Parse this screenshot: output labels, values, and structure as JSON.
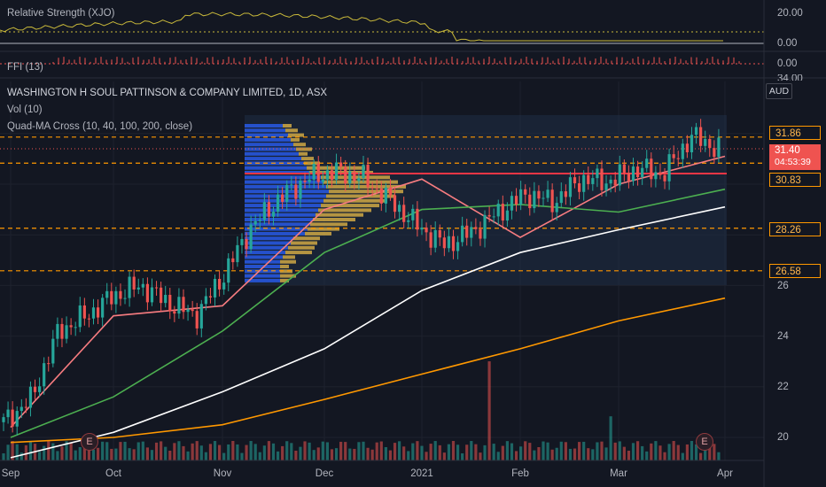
{
  "indicators": {
    "rs_label": "Relative Strength (XJO)",
    "rs_axis": [
      "20.00",
      "0.00"
    ],
    "ffi_label": "FFI (13)",
    "ffi_axis": [
      "0.00"
    ]
  },
  "main": {
    "symbol_title": "WASHINGTON H SOUL PATTINSON & COMPANY LIMITED, 1D, ASX",
    "vol_label": "Vol (10)",
    "ma_label": "Quad-MA Cross (10, 40, 100, 200, close)",
    "currency": "AUD",
    "axis_top_partial": "34.00"
  },
  "colors": {
    "background": "#131722",
    "up": "#26a69a",
    "down": "#ef5350",
    "ma10": "#f77c80",
    "ma40": "#4caf50",
    "ma100": "#ffffff",
    "ma200": "#ff9800",
    "level": "#ff9800",
    "resistance": "#f23645",
    "rs_line": "#c8b83a",
    "profile_blue": "#2962ff",
    "profile_yellow": "#f7c548"
  },
  "chart_data": {
    "type": "candlestick",
    "title": "WASHINGTON H SOUL PATTINSON & COMPANY LIMITED, 1D, ASX",
    "y_axis": {
      "ticks": [
        20.0,
        22.0,
        24.0,
        26.0,
        34.0
      ],
      "ylim": [
        19.2,
        34.0
      ]
    },
    "x_axis": {
      "ticks": [
        "Sep",
        "Oct",
        "Nov",
        "Dec",
        "2021",
        "Feb",
        "Mar",
        "Apr"
      ]
    },
    "horizontal_levels": [
      {
        "value": 31.86,
        "label": "31.86",
        "style": "dashed",
        "color": "#ff9800"
      },
      {
        "value": 30.83,
        "label": "30.83",
        "style": "dashed",
        "color": "#ff9800"
      },
      {
        "value": 28.26,
        "label": "28.26",
        "style": "dashed",
        "color": "#ff9800"
      },
      {
        "value": 26.58,
        "label": "26.58",
        "style": "dashed",
        "color": "#ff9800"
      }
    ],
    "resistance_line": {
      "value": 30.42,
      "from": "Nov",
      "to": "Apr",
      "color": "#f23645"
    },
    "last_price": {
      "value": 31.4,
      "label": "31.40",
      "countdown": "04:53:39"
    },
    "events": [
      {
        "x": "Sep",
        "label": "E"
      },
      {
        "x": "Mar",
        "label": "E"
      }
    ],
    "series": [
      {
        "name": "Quad-MA Cross 10",
        "color": "#f77c80",
        "x": [
          "Sep",
          "Oct",
          "Nov",
          "Dec",
          "2021",
          "Feb",
          "Mar",
          "Apr"
        ],
        "values": [
          20.4,
          24.8,
          25.2,
          29.0,
          30.2,
          27.9,
          30.0,
          31.1
        ]
      },
      {
        "name": "Quad-MA Cross 40",
        "color": "#4caf50",
        "x": [
          "Sep",
          "Oct",
          "Nov",
          "Dec",
          "2021",
          "Feb",
          "Mar",
          "Apr"
        ],
        "values": [
          20.0,
          21.6,
          24.2,
          27.3,
          29.0,
          29.2,
          28.9,
          29.8
        ]
      },
      {
        "name": "Quad-MA Cross 100",
        "color": "#ffffff",
        "x": [
          "Sep",
          "Oct",
          "Nov",
          "Dec",
          "2021",
          "Feb",
          "Mar",
          "Apr"
        ],
        "values": [
          19.2,
          20.2,
          21.8,
          23.5,
          25.8,
          27.3,
          28.2,
          29.1
        ]
      },
      {
        "name": "Quad-MA Cross 200",
        "color": "#ff9800",
        "x": [
          "Sep",
          "Oct",
          "Nov",
          "Dec",
          "2021",
          "Feb",
          "Mar",
          "Apr"
        ],
        "values": [
          19.8,
          20.0,
          20.5,
          21.5,
          22.5,
          23.5,
          24.6,
          25.5
        ]
      }
    ],
    "candles_note": "daily OHLC approximated from picture",
    "price_path": [
      20.6,
      21.5,
      24.2,
      24.8,
      25.6,
      26.0,
      25.3,
      24.8,
      26.4,
      28.3,
      29.4,
      30.2,
      30.5,
      30.3,
      29.4,
      28.4,
      27.6,
      28.1,
      28.9,
      29.6,
      29.3,
      30.2,
      30.1,
      30.6,
      30.4,
      31.9,
      31.4
    ],
    "volume_profile_note": "horizontal volume-by-price histogram over Nov–Apr range",
    "panels": {
      "relative_strength": {
        "label": "Relative Strength (XJO)",
        "ticks": [
          20.0,
          0.0
        ]
      },
      "ffi": {
        "label": "FFI (13)",
        "ticks": [
          0.0
        ]
      },
      "volume": {
        "label": "Vol (10)"
      }
    },
    "grid": true,
    "legend": "top-left"
  }
}
